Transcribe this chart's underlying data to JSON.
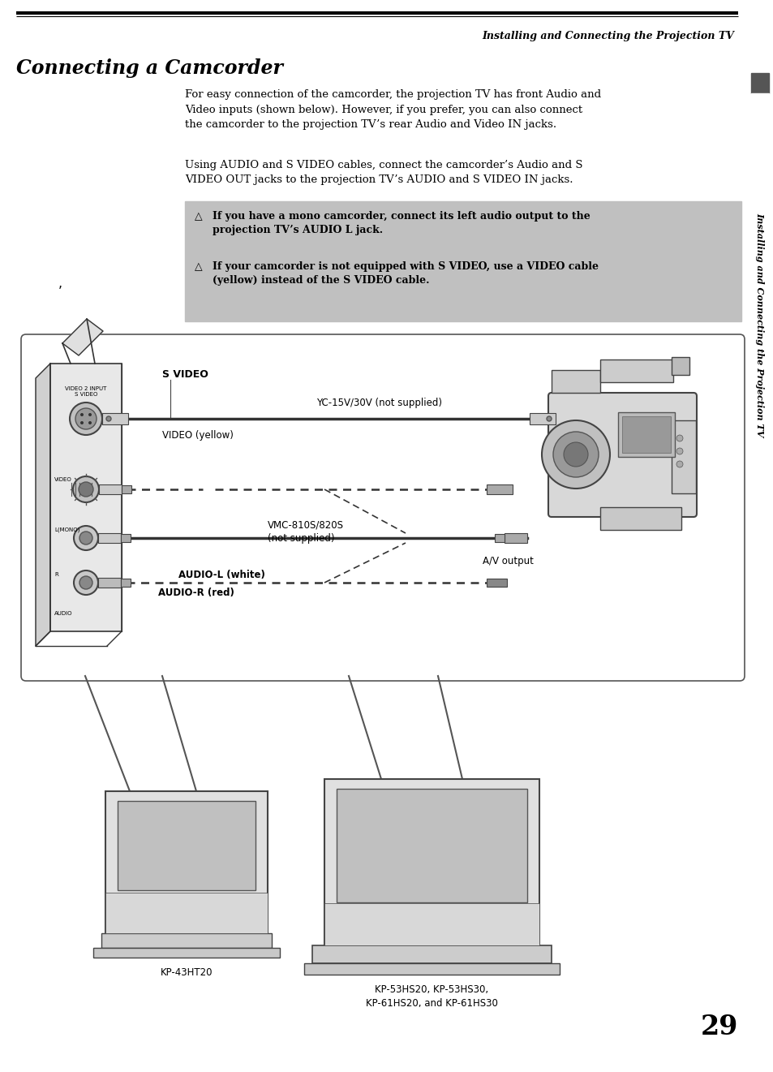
{
  "page_bg": "#ffffff",
  "header_text": "Installing and Connecting the Projection TV",
  "title": "Connecting a Camcorder",
  "body_text_1": "For easy connection of the camcorder, the projection TV has front Audio and\nVideo inputs (shown below). However, if you prefer, you can also connect\nthe camcorder to the projection TV’s rear Audio and Video IN jacks.",
  "body_text_2": "Using AUDIO and S VIDEO cables, connect the camcorder’s Audio and S\nVIDEO OUT jacks to the projection TV’s AUDIO and S VIDEO IN jacks.",
  "note1_sym": "△",
  "note1_text": "If you have a mono camcorder, connect its left audio output to the\nprojection TV’s AUDIO L jack.",
  "note2_sym": "△",
  "note2_text": "If your camcorder is not equipped with S VIDEO, use a VIDEO cable\n(yellow) instead of the S VIDEO cable.",
  "note_bg": "#c0c0c0",
  "sidebar_text": "Installing and Connecting the Projection TV",
  "labels_s_video": "S VIDEO",
  "labels_video_yellow": "VIDEO (yellow)",
  "labels_yc": "YC-15V/30V (not supplied)",
  "labels_vmc": "VMC-810S/820S\n(not supplied)",
  "labels_av_output": "A/V output",
  "labels_audio_l": "AUDIO-L (white)",
  "labels_audio_r": "AUDIO-R (red)",
  "labels_video2input": "VIDEO 2 INPUT\nS VIDEO",
  "labels_video": "VIDEO",
  "labels_l_mono": "L(MONO)",
  "labels_r": "R",
  "labels_audio": "AUDIO",
  "tv1_label": "KP-43HT20",
  "tv2_label": "KP-53HS20, KP-53HS30,\nKP-61HS20, and KP-61HS30",
  "page_number": "29",
  "small_note_char": "’"
}
